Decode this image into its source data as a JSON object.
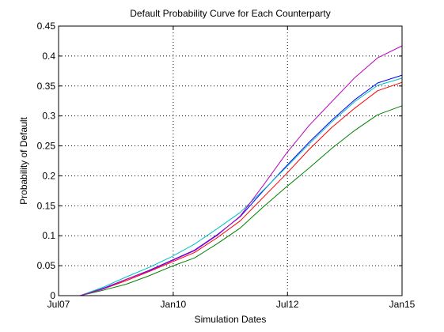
{
  "chart_data": {
    "type": "line",
    "title": "Default Probability Curve for Each Counterparty",
    "xlabel": "Simulation Dates",
    "ylabel": "Probability of Default",
    "x_ticks": [
      "Jul07",
      "Jan10",
      "Jul12",
      "Jan15"
    ],
    "x_tick_dates": [
      "2007-07-01",
      "2010-01-01",
      "2012-07-01",
      "2015-01-01"
    ],
    "xlim": [
      "2007-07-01",
      "2015-01-01"
    ],
    "y_ticks": [
      "0",
      "0.05",
      "0.1",
      "0.15",
      "0.2",
      "0.25",
      "0.3",
      "0.35",
      "0.4",
      "0.45"
    ],
    "y_tick_values": [
      0,
      0.05,
      0.1,
      0.15,
      0.2,
      0.25,
      0.3,
      0.35,
      0.4,
      0.45
    ],
    "ylim": [
      0,
      0.45
    ],
    "grid": true,
    "legend": "none",
    "x": [
      "2007-12-20",
      "2008-06-20",
      "2008-12-20",
      "2009-06-20",
      "2009-12-20",
      "2010-06-20",
      "2010-12-20",
      "2011-06-20",
      "2011-12-20",
      "2012-06-20",
      "2012-12-20",
      "2013-06-20",
      "2013-12-20",
      "2014-06-20",
      "2015-01-01"
    ],
    "series": [
      {
        "color": "#0000ff",
        "values": [
          0.0,
          0.012,
          0.027,
          0.042,
          0.059,
          0.076,
          0.102,
          0.132,
          0.175,
          0.216,
          0.256,
          0.293,
          0.327,
          0.355,
          0.368
        ]
      },
      {
        "color": "#008000",
        "values": [
          0.0,
          0.009,
          0.019,
          0.033,
          0.049,
          0.063,
          0.087,
          0.113,
          0.148,
          0.181,
          0.213,
          0.246,
          0.276,
          0.302,
          0.317
        ]
      },
      {
        "color": "#ff0000",
        "values": [
          0.0,
          0.011,
          0.025,
          0.04,
          0.056,
          0.072,
          0.097,
          0.125,
          0.164,
          0.203,
          0.244,
          0.281,
          0.313,
          0.342,
          0.356
        ]
      },
      {
        "color": "#00bfbf",
        "values": [
          0.0,
          0.014,
          0.031,
          0.047,
          0.065,
          0.086,
          0.112,
          0.139,
          0.176,
          0.214,
          0.253,
          0.29,
          0.324,
          0.351,
          0.363
        ]
      },
      {
        "color": "#bf00bf",
        "values": [
          0.0,
          0.011,
          0.027,
          0.041,
          0.058,
          0.075,
          0.101,
          0.133,
          0.184,
          0.237,
          0.284,
          0.324,
          0.364,
          0.397,
          0.417
        ]
      }
    ]
  }
}
